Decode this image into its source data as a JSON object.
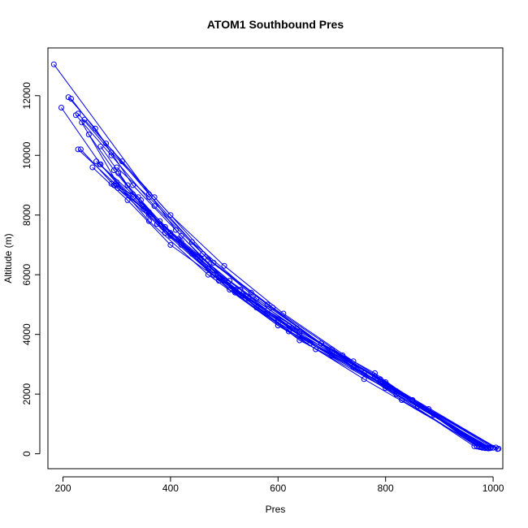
{
  "chart_data": {
    "type": "line",
    "title": "ATOM1 Southbound Pres",
    "xlabel": "Pres",
    "ylabel": "Altitude (m)",
    "xlim": [
      172,
      1018
    ],
    "ylim": [
      -500,
      13600
    ],
    "x_ticks": [
      200,
      400,
      600,
      800,
      1000
    ],
    "y_ticks": [
      0,
      2000,
      4000,
      6000,
      8000,
      10000,
      12000
    ],
    "x_tick_labels": [
      "200",
      "400",
      "600",
      "800",
      "1000"
    ],
    "y_tick_labels": [
      "0",
      "2000",
      "4000",
      "6000",
      "8000",
      "10000",
      "12000"
    ],
    "grid": false,
    "legend": "none",
    "color": "#0000ff",
    "marker": "open-circle",
    "series": [
      {
        "x": [
          183,
          410,
          520,
          600,
          760,
          980
        ],
        "y": [
          13050,
          7500,
          5400,
          4300,
          2500,
          200
        ]
      },
      {
        "x": [
          985,
          800,
          640,
          520,
          420,
          330,
          260,
          210
        ],
        "y": [
          190,
          2300,
          3800,
          5500,
          7300,
          9000,
          10900,
          11950
        ]
      },
      {
        "x": [
          215,
          280,
          360,
          470,
          580,
          700,
          830,
          975
        ],
        "y": [
          11900,
          10400,
          8700,
          6500,
          5000,
          3400,
          1800,
          220
        ]
      },
      {
        "x": [
          990,
          790,
          620,
          510,
          390,
          300,
          235
        ],
        "y": [
          200,
          2400,
          4100,
          5500,
          7400,
          9100,
          11100
        ]
      },
      {
        "x": [
          228,
          290,
          370,
          480,
          590,
          720,
          860,
          995
        ],
        "y": [
          11400,
          10100,
          8600,
          6400,
          4900,
          3300,
          1600,
          190
        ]
      },
      {
        "x": [
          1005,
          780,
          600,
          470,
          360,
          270,
          197
        ],
        "y": [
          210,
          2600,
          4300,
          6000,
          7800,
          9700,
          11600
        ]
      },
      {
        "x": [
          240,
          310,
          400,
          500,
          610,
          740,
          880,
          1010
        ],
        "y": [
          11200,
          9800,
          8000,
          6300,
          4700,
          3100,
          1500,
          170
        ]
      },
      {
        "x": [
          980,
          820,
          660,
          545,
          455,
          380,
          320,
          270
        ],
        "y": [
          230,
          2100,
          3700,
          5200,
          6500,
          7800,
          9000,
          10300
        ]
      },
      {
        "x": [
          228,
          300,
          390,
          510,
          640,
          780,
          975
        ],
        "y": [
          10200,
          9000,
          7600,
          5800,
          4100,
          2600,
          240
        ]
      },
      {
        "x": [
          995,
          820,
          670,
          560,
          470,
          400,
          340,
          290
        ],
        "y": [
          210,
          2000,
          3500,
          4900,
          6200,
          7300,
          8600,
          9050
        ]
      },
      {
        "x": [
          262,
          330,
          420,
          530,
          660,
          800,
          970
        ],
        "y": [
          9800,
          8700,
          7100,
          5500,
          3700,
          2200,
          250
        ]
      },
      {
        "x": [
          985,
          800,
          640,
          535,
          450,
          390,
          345
        ],
        "y": [
          190,
          2400,
          4000,
          5300,
          6600,
          7400,
          8500
        ]
      },
      {
        "x": [
          300,
          360,
          440,
          550,
          680,
          820,
          990
        ],
        "y": [
          9600,
          8600,
          7100,
          5400,
          3700,
          2000,
          180
        ]
      },
      {
        "x": [
          970,
          780,
          620,
          500,
          415,
          350,
          302
        ],
        "y": [
          240,
          2700,
          4300,
          5800,
          7200,
          8200,
          8900
        ]
      },
      {
        "x": [
          255,
          320,
          400,
          485,
          580,
          700,
          850,
          1000
        ],
        "y": [
          9600,
          8500,
          7000,
          5900,
          4800,
          3500,
          1800,
          200
        ]
      },
      {
        "x": [
          1008,
          850,
          700,
          580,
          490,
          420,
          360,
          303
        ],
        "y": [
          160,
          1800,
          3300,
          4700,
          5800,
          7000,
          8000,
          9400
        ]
      },
      {
        "x": [
          224,
          290,
          370,
          460,
          560,
          680,
          820,
          978
        ],
        "y": [
          11350,
          10000,
          8300,
          6700,
          5200,
          3700,
          2100,
          215
        ]
      },
      {
        "x": [
          992,
          790,
          635,
          530,
          440,
          360,
          295,
          248
        ],
        "y": [
          180,
          2500,
          4200,
          5500,
          6700,
          8100,
          9500,
          10700
        ]
      },
      {
        "x": [
          233,
          295,
          375,
          480,
          600,
          740,
          890,
          988
        ],
        "y": [
          10200,
          9000,
          7700,
          6000,
          4400,
          2900,
          1300,
          200
        ]
      },
      {
        "x": [
          965,
          760,
          600,
          490,
          400,
          330,
          268
        ],
        "y": [
          250,
          2700,
          4500,
          5900,
          7400,
          8600,
          9700
        ]
      }
    ]
  }
}
